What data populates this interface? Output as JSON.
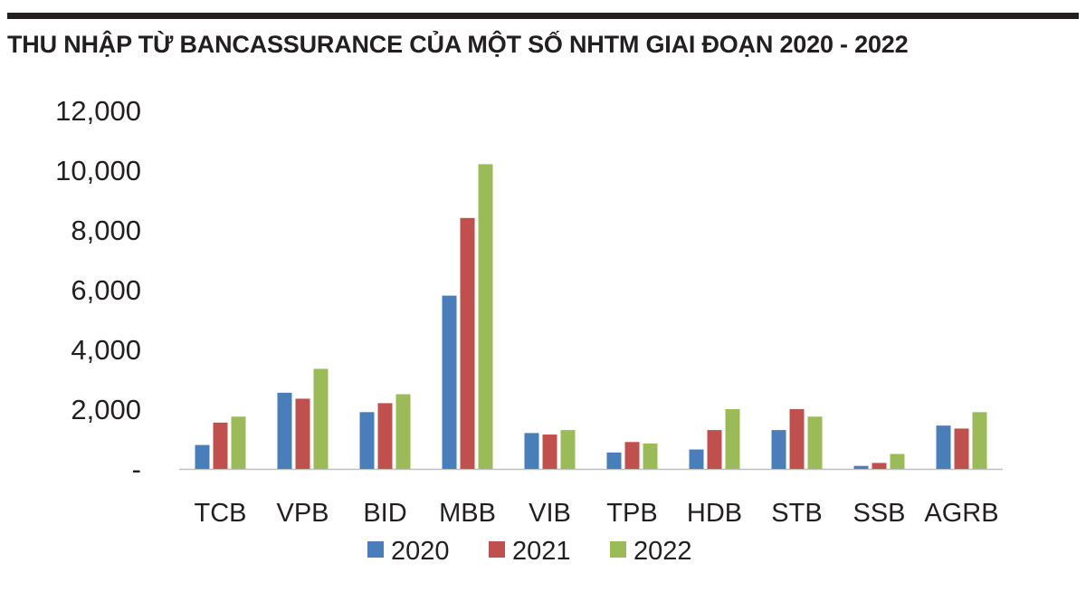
{
  "chart_data": {
    "type": "bar",
    "title": "THU NHẬP TỪ BANCASSURANCE CỦA MỘT SỐ NHTM GIAI ĐOẠN 2020 - 2022",
    "xlabel": "",
    "ylabel": "",
    "categories": [
      "TCB",
      "VPB",
      "BID",
      "MBB",
      "VIB",
      "TPB",
      "HDB",
      "STB",
      "SSB",
      "AGRB"
    ],
    "series": [
      {
        "name": "2020",
        "color": "#4a7ebb",
        "values": [
          800,
          2550,
          1900,
          5800,
          1200,
          550,
          650,
          1300,
          100,
          1450
        ]
      },
      {
        "name": "2021",
        "color": "#c0504d",
        "values": [
          1550,
          2350,
          2200,
          8400,
          1150,
          900,
          1300,
          2000,
          200,
          1350
        ]
      },
      {
        "name": "2022",
        "color": "#9bbb59",
        "values": [
          1750,
          3350,
          2500,
          10200,
          1300,
          850,
          2000,
          1750,
          500,
          1900
        ]
      }
    ],
    "ylim": [
      0,
      12000
    ],
    "yticks": [
      0,
      2000,
      4000,
      6000,
      8000,
      10000,
      12000
    ],
    "ytick_labels": [
      "-",
      "2,000",
      "4,000",
      "6,000",
      "8,000",
      "10,000",
      "12,000"
    ],
    "grid": false,
    "legend_position": "bottom"
  }
}
